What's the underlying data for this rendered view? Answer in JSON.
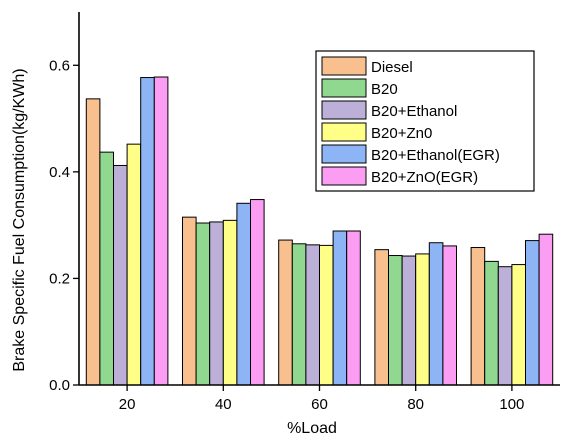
{
  "chart_data": {
    "type": "bar",
    "title": "",
    "xlabel": "%Load",
    "ylabel": "Brake Specific Fuel Consumption(kg/KWh)",
    "categories": [
      "20",
      "40",
      "60",
      "80",
      "100"
    ],
    "ylim": [
      0,
      0.7
    ],
    "yticks": [
      0.0,
      0.2,
      0.4,
      0.6
    ],
    "ytick_labels": [
      "0.0",
      "0.2",
      "0.4",
      "0.6"
    ],
    "grid": false,
    "legend_position": "top-right",
    "series": [
      {
        "name": "Diesel",
        "color": "#f9c08f",
        "values": [
          0.537,
          0.315,
          0.272,
          0.254,
          0.258
        ]
      },
      {
        "name": "B20",
        "color": "#90d890",
        "values": [
          0.437,
          0.304,
          0.265,
          0.243,
          0.232
        ]
      },
      {
        "name": "B20+Ethanol",
        "color": "#bcb0d8",
        "values": [
          0.412,
          0.306,
          0.263,
          0.242,
          0.222
        ]
      },
      {
        "name": "B20+Zn0",
        "color": "#ffff88",
        "values": [
          0.452,
          0.309,
          0.262,
          0.246,
          0.226
        ]
      },
      {
        "name": "B20+Ethanol(EGR)",
        "color": "#8db5f5",
        "values": [
          0.577,
          0.341,
          0.289,
          0.267,
          0.271
        ]
      },
      {
        "name": "B20+ZnO(EGR)",
        "color": "#fb9ef3",
        "values": [
          0.578,
          0.348,
          0.289,
          0.261,
          0.283
        ]
      }
    ]
  }
}
